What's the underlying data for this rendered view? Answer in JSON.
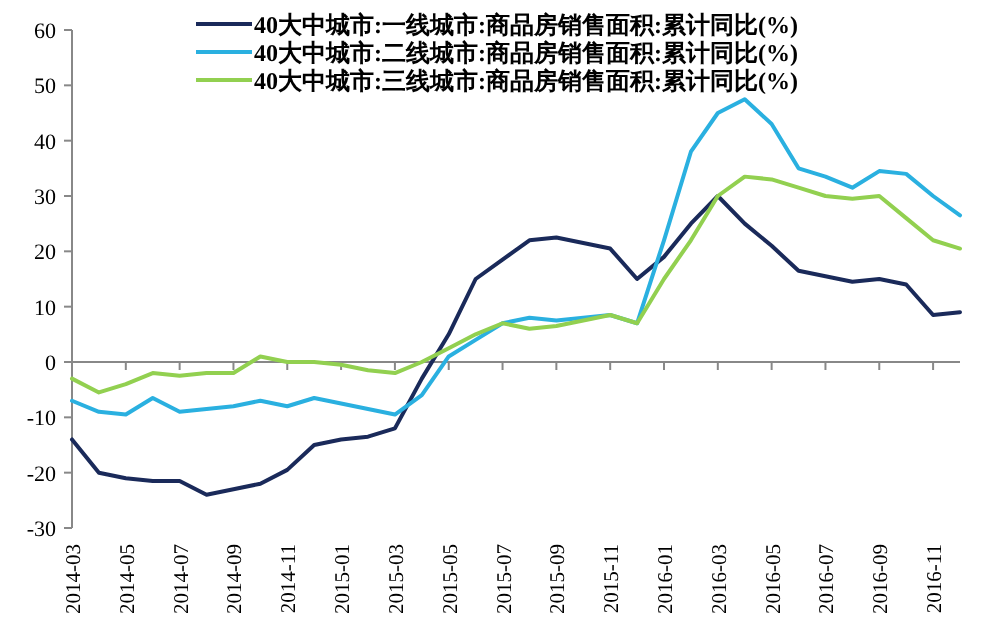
{
  "chart_data": {
    "type": "line",
    "categories": [
      "2014-03",
      null,
      "2014-05",
      null,
      "2014-07",
      null,
      "2014-09",
      null,
      "2014-11",
      null,
      "2015-01",
      null,
      "2015-03",
      null,
      "2015-05",
      null,
      "2015-07",
      null,
      "2015-09",
      null,
      "2015-11",
      null,
      "2016-01",
      null,
      "2016-03",
      null,
      "2016-05",
      null,
      "2016-07",
      null,
      "2016-09",
      null,
      "2016-11",
      null
    ],
    "series": [
      {
        "name": "40大中城市:一线城市:商品房销售面积:累计同比(%)",
        "color": "#1a2a5a",
        "values": [
          -14,
          -20,
          -21,
          -21.5,
          -21.5,
          -24,
          -23,
          -22,
          -19.5,
          -15,
          -14,
          -13.5,
          -12,
          -3,
          5,
          15,
          18.5,
          22,
          22.5,
          21.5,
          20.5,
          15,
          19,
          25,
          30,
          25,
          21,
          16.5,
          15.5,
          14.5,
          15,
          14,
          8.5,
          9
        ]
      },
      {
        "name": "40大中城市:二线城市:商品房销售面积:累计同比(%)",
        "color": "#2ab0e0",
        "values": [
          -7,
          -9,
          -9.5,
          -6.5,
          -9,
          -8.5,
          -8,
          -7,
          -8,
          -6.5,
          -7.5,
          -8.5,
          -9.5,
          -6,
          1,
          4,
          7,
          8,
          7.5,
          8,
          8.5,
          7,
          22,
          38,
          45,
          47.5,
          43,
          35,
          33.5,
          31.5,
          34.5,
          34,
          30,
          26.5
        ]
      },
      {
        "name": "40大中城市:三线城市:商品房销售面积:累计同比(%)",
        "color": "#92d050",
        "values": [
          -3,
          -5.5,
          -4,
          -2,
          -2.5,
          -2,
          -2,
          1,
          0,
          0,
          -0.5,
          -1.5,
          -2,
          0,
          2.5,
          5,
          7,
          6,
          6.5,
          7.5,
          8.5,
          7,
          15,
          22,
          30,
          33.5,
          33,
          31.5,
          30,
          29.5,
          30,
          26,
          22,
          20.5
        ]
      }
    ],
    "ylim": [
      -30,
      60
    ],
    "yticks": [
      -30,
      -20,
      -10,
      0,
      10,
      20,
      30,
      40,
      50,
      60
    ],
    "legend": "top",
    "marker": "none",
    "line_style": "solid"
  }
}
